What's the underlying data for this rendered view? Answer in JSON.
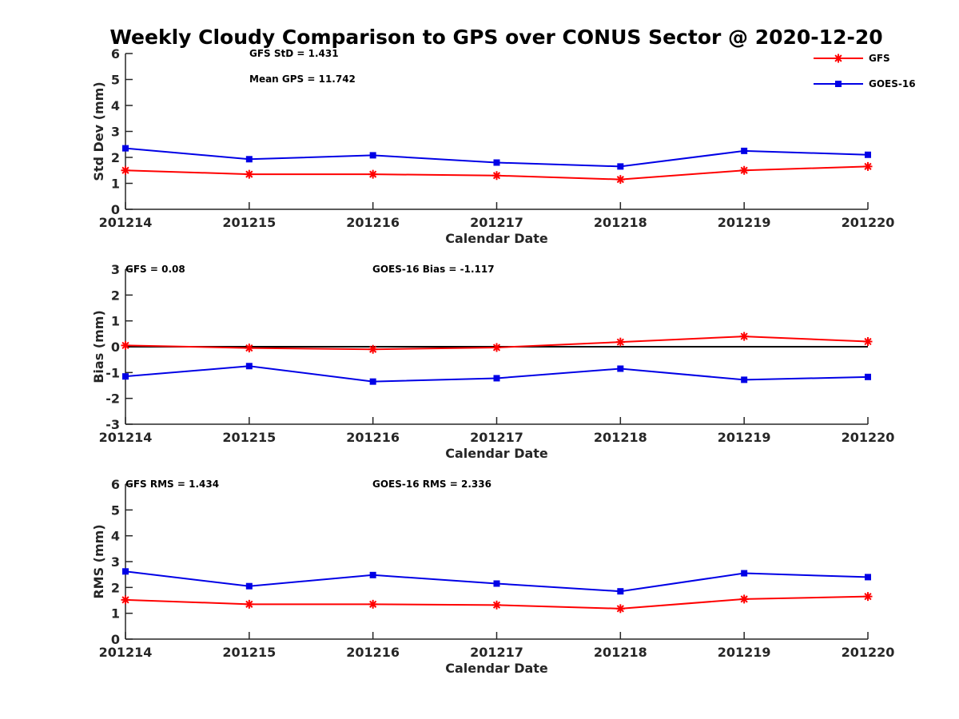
{
  "title": "Weekly Cloudy Comparison to GPS over CONUS Sector @ 2020-12-20",
  "colors": {
    "GFS": "#ff0000",
    "GOES-16": "#0000e6",
    "zero_line": "#000000"
  },
  "legend": {
    "placement": "top-right",
    "entries": [
      {
        "name": "GFS",
        "marker": "asterisk",
        "color": "#ff0000"
      },
      {
        "name": "GOES-16",
        "marker": "square",
        "color": "#0000e6"
      }
    ]
  },
  "chart_data": [
    {
      "type": "line",
      "xlabel": "Calendar Date",
      "ylabel": "Std Dev (mm)",
      "categories": [
        "201214",
        "201215",
        "201216",
        "201217",
        "201218",
        "201219",
        "201220"
      ],
      "ylim": [
        0,
        6
      ],
      "yticks": [
        "0",
        "1",
        "2",
        "3",
        "4",
        "5",
        "6"
      ],
      "annotations": [
        "GFS StD = 1.431",
        "Mean GPS = 11.742"
      ],
      "series": [
        {
          "name": "GFS",
          "values": [
            1.5,
            1.35,
            1.35,
            1.3,
            1.15,
            1.5,
            1.65
          ]
        },
        {
          "name": "GOES-16",
          "values": [
            2.35,
            1.93,
            2.08,
            1.8,
            1.65,
            2.25,
            2.1
          ]
        }
      ]
    },
    {
      "type": "line",
      "xlabel": "Calendar Date",
      "ylabel": "Bias (mm)",
      "categories": [
        "201214",
        "201215",
        "201216",
        "201217",
        "201218",
        "201219",
        "201220"
      ],
      "ylim": [
        -3,
        3
      ],
      "yticks": [
        "-3",
        "-2",
        "-1",
        "0",
        "1",
        "2",
        "3"
      ],
      "zero_line": true,
      "annotations": [
        "GFS = 0.08",
        "GOES-16 Bias  = -1.117"
      ],
      "series": [
        {
          "name": "GFS",
          "values": [
            0.05,
            -0.05,
            -0.1,
            -0.03,
            0.18,
            0.4,
            0.2
          ]
        },
        {
          "name": "GOES-16",
          "values": [
            -1.15,
            -0.75,
            -1.35,
            -1.22,
            -0.85,
            -1.28,
            -1.17
          ]
        }
      ]
    },
    {
      "type": "line",
      "xlabel": "Calendar Date",
      "ylabel": "RMS (mm)",
      "categories": [
        "201214",
        "201215",
        "201216",
        "201217",
        "201218",
        "201219",
        "201220"
      ],
      "ylim": [
        0,
        6
      ],
      "yticks": [
        "0",
        "1",
        "2",
        "3",
        "4",
        "5",
        "6"
      ],
      "annotations": [
        "GFS RMS = 1.434",
        "GOES-16 RMS = 2.336"
      ],
      "series": [
        {
          "name": "GFS",
          "values": [
            1.52,
            1.35,
            1.35,
            1.32,
            1.18,
            1.55,
            1.65
          ]
        },
        {
          "name": "GOES-16",
          "values": [
            2.62,
            2.05,
            2.48,
            2.15,
            1.85,
            2.55,
            2.4
          ]
        }
      ]
    }
  ]
}
